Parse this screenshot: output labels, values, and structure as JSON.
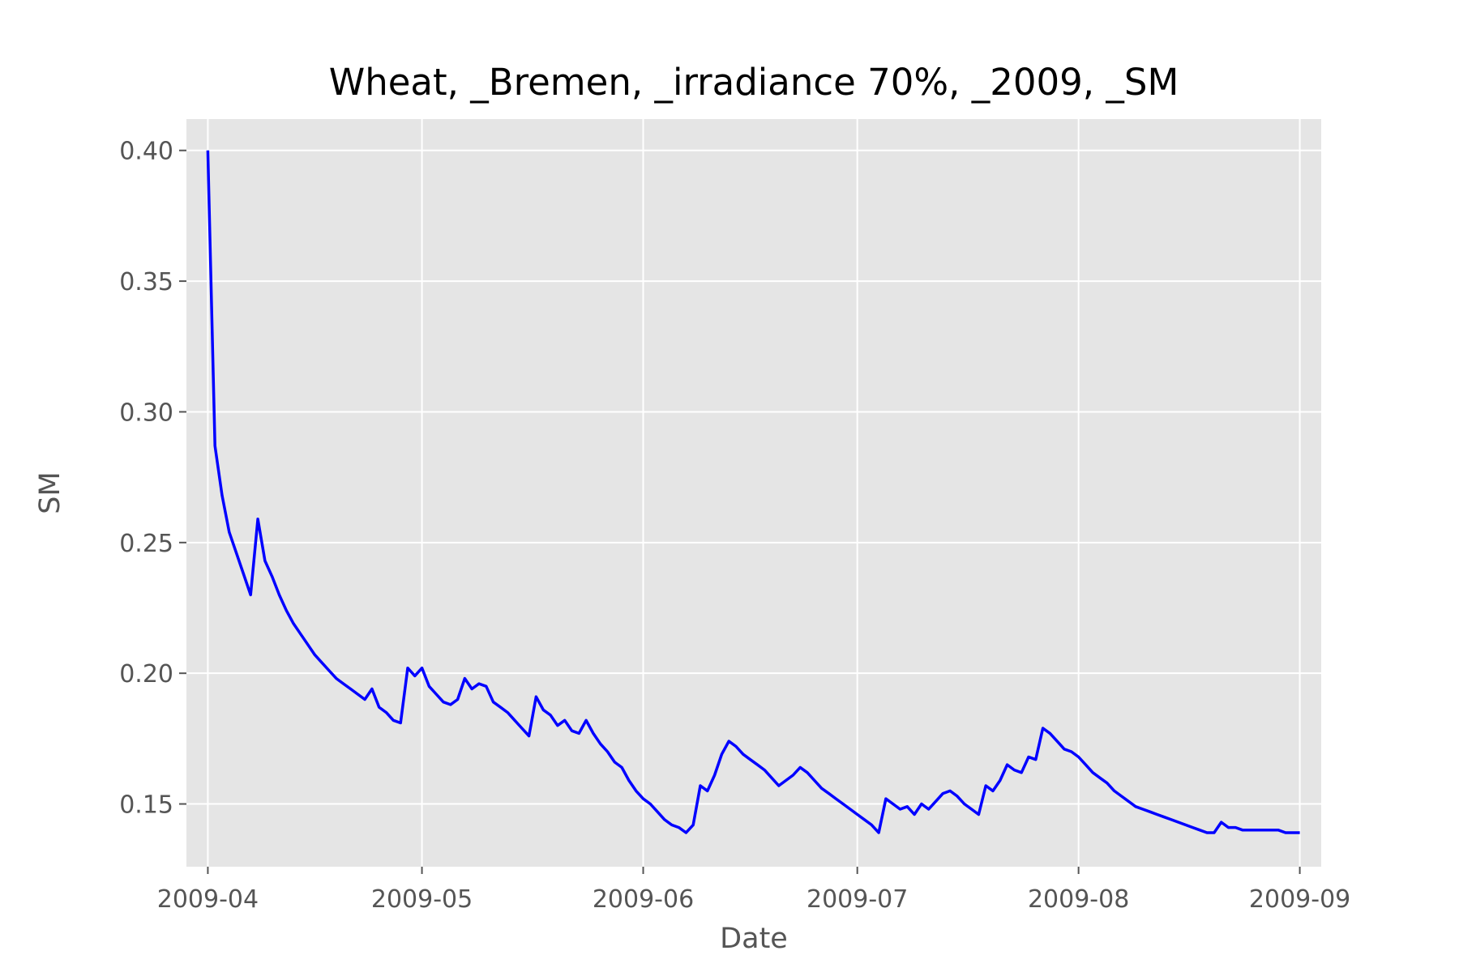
{
  "chart_data": {
    "type": "line",
    "title": "Wheat, _Bremen, _irradiance 70%, _2009, _SM",
    "xlabel": "Date",
    "ylabel": "SM",
    "grid": true,
    "ylim": [
      0.126,
      0.412
    ],
    "xlim": [
      "2009-03-29",
      "2009-09-04"
    ],
    "x_ticks": [
      "2009-04-01",
      "2009-05-01",
      "2009-06-01",
      "2009-07-01",
      "2009-08-01",
      "2009-09-01"
    ],
    "x_tick_labels": [
      "2009-04",
      "2009-05",
      "2009-06",
      "2009-07",
      "2009-08",
      "2009-09"
    ],
    "y_ticks": [
      0.15,
      0.2,
      0.25,
      0.3,
      0.35,
      0.4
    ],
    "y_tick_labels": [
      "0.15",
      "0.20",
      "0.25",
      "0.30",
      "0.35",
      "0.40"
    ],
    "colors": {
      "line": "#0000ff",
      "plot_bg": "#e5e5e5",
      "grid": "#ffffff"
    },
    "series": [
      {
        "x": [
          "2009-04-01",
          "2009-04-02",
          "2009-04-03",
          "2009-04-04",
          "2009-04-05",
          "2009-04-06",
          "2009-04-07",
          "2009-04-08",
          "2009-04-09",
          "2009-04-10",
          "2009-04-11",
          "2009-04-12",
          "2009-04-13",
          "2009-04-14",
          "2009-04-15",
          "2009-04-16",
          "2009-04-17",
          "2009-04-18",
          "2009-04-19",
          "2009-04-20",
          "2009-04-21",
          "2009-04-22",
          "2009-04-23",
          "2009-04-24",
          "2009-04-25",
          "2009-04-26",
          "2009-04-27",
          "2009-04-28",
          "2009-04-29",
          "2009-04-30",
          "2009-05-01",
          "2009-05-02",
          "2009-05-03",
          "2009-05-04",
          "2009-05-05",
          "2009-05-06",
          "2009-05-07",
          "2009-05-08",
          "2009-05-09",
          "2009-05-10",
          "2009-05-11",
          "2009-05-12",
          "2009-05-13",
          "2009-05-14",
          "2009-05-15",
          "2009-05-16",
          "2009-05-17",
          "2009-05-18",
          "2009-05-19",
          "2009-05-20",
          "2009-05-21",
          "2009-05-22",
          "2009-05-23",
          "2009-05-24",
          "2009-05-25",
          "2009-05-26",
          "2009-05-27",
          "2009-05-28",
          "2009-05-29",
          "2009-05-30",
          "2009-05-31",
          "2009-06-01",
          "2009-06-02",
          "2009-06-03",
          "2009-06-04",
          "2009-06-05",
          "2009-06-06",
          "2009-06-07",
          "2009-06-08",
          "2009-06-09",
          "2009-06-10",
          "2009-06-11",
          "2009-06-12",
          "2009-06-13",
          "2009-06-14",
          "2009-06-15",
          "2009-06-16",
          "2009-06-17",
          "2009-06-18",
          "2009-06-19",
          "2009-06-20",
          "2009-06-21",
          "2009-06-22",
          "2009-06-23",
          "2009-06-24",
          "2009-06-25",
          "2009-06-26",
          "2009-06-27",
          "2009-06-28",
          "2009-06-29",
          "2009-06-30",
          "2009-07-01",
          "2009-07-02",
          "2009-07-03",
          "2009-07-04",
          "2009-07-05",
          "2009-07-06",
          "2009-07-07",
          "2009-07-08",
          "2009-07-09",
          "2009-07-10",
          "2009-07-11",
          "2009-07-12",
          "2009-07-13",
          "2009-07-14",
          "2009-07-15",
          "2009-07-16",
          "2009-07-17",
          "2009-07-18",
          "2009-07-19",
          "2009-07-20",
          "2009-07-21",
          "2009-07-22",
          "2009-07-23",
          "2009-07-24",
          "2009-07-25",
          "2009-07-26",
          "2009-07-27",
          "2009-07-28",
          "2009-07-29",
          "2009-07-30",
          "2009-07-31",
          "2009-08-01",
          "2009-08-02",
          "2009-08-03",
          "2009-08-04",
          "2009-08-05",
          "2009-08-06",
          "2009-08-07",
          "2009-08-08",
          "2009-08-09",
          "2009-08-10",
          "2009-08-11",
          "2009-08-12",
          "2009-08-13",
          "2009-08-14",
          "2009-08-15",
          "2009-08-16",
          "2009-08-17",
          "2009-08-18",
          "2009-08-19",
          "2009-08-20",
          "2009-08-21",
          "2009-08-22",
          "2009-08-23",
          "2009-08-24",
          "2009-08-25",
          "2009-08-26",
          "2009-08-27",
          "2009-08-28",
          "2009-08-29",
          "2009-08-30",
          "2009-08-31",
          "2009-09-01"
        ],
        "y": [
          0.4,
          0.287,
          0.268,
          0.254,
          0.246,
          0.238,
          0.23,
          0.259,
          0.243,
          0.237,
          0.23,
          0.224,
          0.219,
          0.215,
          0.211,
          0.207,
          0.204,
          0.201,
          0.198,
          0.196,
          0.194,
          0.192,
          0.19,
          0.194,
          0.187,
          0.185,
          0.182,
          0.181,
          0.202,
          0.199,
          0.202,
          0.195,
          0.192,
          0.189,
          0.188,
          0.19,
          0.198,
          0.194,
          0.196,
          0.195,
          0.189,
          0.187,
          0.185,
          0.182,
          0.179,
          0.176,
          0.191,
          0.186,
          0.184,
          0.18,
          0.182,
          0.178,
          0.177,
          0.182,
          0.177,
          0.173,
          0.17,
          0.166,
          0.164,
          0.159,
          0.155,
          0.152,
          0.15,
          0.147,
          0.144,
          0.142,
          0.141,
          0.139,
          0.142,
          0.157,
          0.155,
          0.161,
          0.169,
          0.174,
          0.172,
          0.169,
          0.167,
          0.165,
          0.163,
          0.16,
          0.157,
          0.159,
          0.161,
          0.164,
          0.162,
          0.159,
          0.156,
          0.154,
          0.152,
          0.15,
          0.148,
          0.146,
          0.144,
          0.142,
          0.139,
          0.152,
          0.15,
          0.148,
          0.149,
          0.146,
          0.15,
          0.148,
          0.151,
          0.154,
          0.155,
          0.153,
          0.15,
          0.148,
          0.146,
          0.157,
          0.155,
          0.159,
          0.165,
          0.163,
          0.162,
          0.168,
          0.167,
          0.179,
          0.177,
          0.174,
          0.171,
          0.17,
          0.168,
          0.165,
          0.162,
          0.16,
          0.158,
          0.155,
          0.153,
          0.151,
          0.149,
          0.148,
          0.147,
          0.146,
          0.145,
          0.144,
          0.143,
          0.142,
          0.141,
          0.14,
          0.139,
          0.139,
          0.143,
          0.141,
          0.141,
          0.14,
          0.14,
          0.14,
          0.14,
          0.14,
          0.14,
          0.139,
          0.139,
          0.139
        ]
      }
    ]
  }
}
